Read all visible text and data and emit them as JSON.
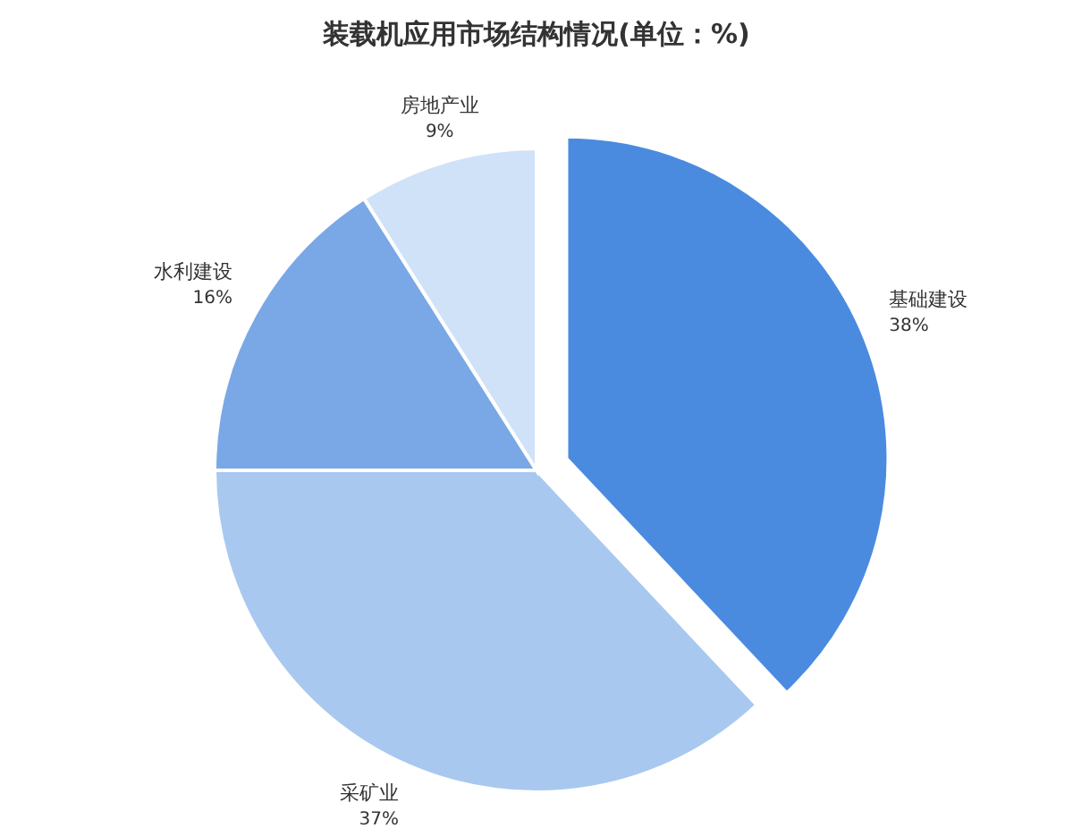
{
  "chart_data": {
    "type": "pie",
    "title": "装载机应用市场结构情况(单位：%)",
    "categories": [
      "基础建设",
      "采矿业",
      "水利建设",
      "房地产业"
    ],
    "values": [
      38,
      37,
      16,
      9
    ],
    "value_labels": [
      "38%",
      "37%",
      "16%",
      "9%"
    ],
    "colors": [
      "#4a8be0",
      "#a9c8ef",
      "#7aa8e6",
      "#cfe2f8"
    ]
  }
}
